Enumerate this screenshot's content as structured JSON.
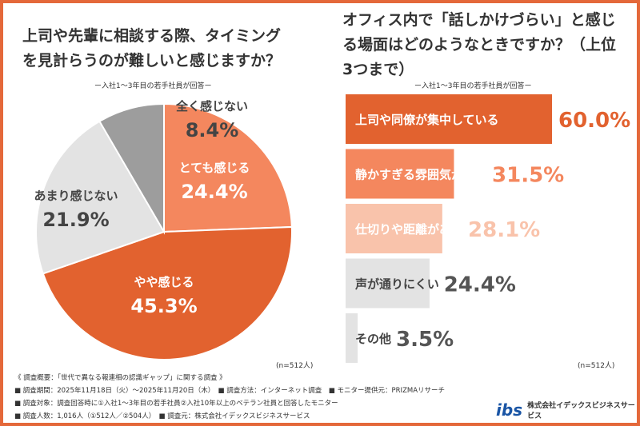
{
  "chart_data": [
    {
      "type": "pie",
      "title": "上司や先輩に相談する際、タイミングを見計らうのが難しいと感じますか？",
      "subtitle": "ー入社1～3年目の若手社員が回答ー",
      "n_label": "(n=512人)",
      "categories": [
        "とても感じる",
        "やや感じる",
        "あまり感じない",
        "全く感じない"
      ],
      "values": [
        24.4,
        45.3,
        21.9,
        8.4
      ],
      "labels": [
        "24.4%",
        "45.3%",
        "21.9%",
        "8.4%"
      ],
      "colors": [
        "#f4875e",
        "#e2622f",
        "#e3e3e3",
        "#9d9d9d"
      ]
    },
    {
      "type": "bar",
      "orientation": "horizontal",
      "title": "オフィス内で「話しかけづらい」と感じる場面はどのようなときですか？（上位3つまで）",
      "subtitle": "ー入社1～3年目の若手社員が回答ー",
      "n_label": "(n=512人)",
      "categories": [
        "上司や同僚が集中している",
        "静かすぎる雰囲気がある",
        "仕切りや距離がある",
        "声が通りにくい",
        "その他"
      ],
      "values": [
        60.0,
        31.5,
        28.1,
        24.4,
        3.5
      ],
      "labels": [
        "60.0%",
        "31.5%",
        "28.1%",
        "24.4%",
        "3.5%"
      ],
      "colors": [
        "#e2622f",
        "#f4875e",
        "#f9c3ab",
        "#e3e3e3",
        "#e3e3e3"
      ],
      "xlim": [
        0,
        100
      ]
    }
  ],
  "footer": {
    "overview": "《 調査概要：「世代で異なる報連相の認識ギャップ」に関する調査 》",
    "period": "■ 調査期間：2025年11月18日（火）～2025年11月20日（木）",
    "method": "■ 調査方法：インターネット調査",
    "provider": "■ モニター提供元：PRIZMAリサーチ",
    "target": "■ 調査対象：調査回答時に①入社1～3年目の若手社員②入社10年以上のベテラン社員と回答したモニター",
    "count": "■ 調査人数：1,016人（①512人／②504人）",
    "source": "■ 調査元：株式会社イデックスビジネスサービス",
    "logo_text": "株式会社イデックスビジネスサービス",
    "logo_mark": "ibs"
  }
}
